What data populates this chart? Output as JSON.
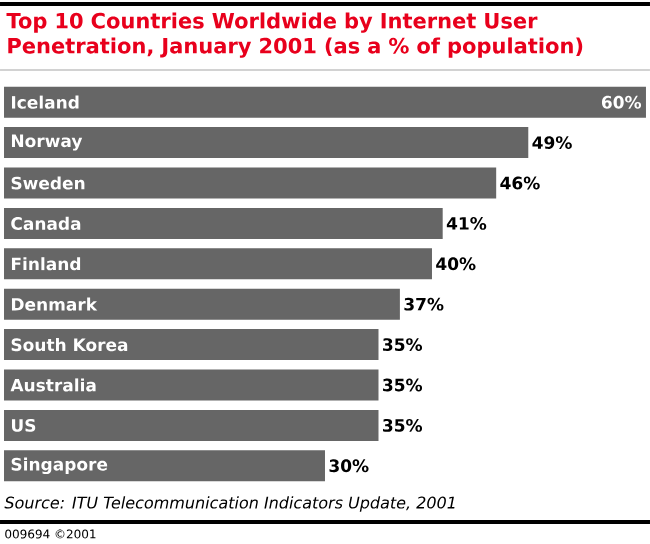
{
  "chart_data": {
    "type": "bar",
    "orientation": "horizontal",
    "title": "Top 10 Countries Worldwide by Internet User Penetration, January 2001 (as a % of population)",
    "categories": [
      "Iceland",
      "Norway",
      "Sweden",
      "Canada",
      "Finland",
      "Denmark",
      "South Korea",
      "Australia",
      "US",
      "Singapore"
    ],
    "values": [
      60,
      49,
      46,
      41,
      40,
      37,
      35,
      35,
      35,
      30
    ],
    "color": "#666666",
    "value_labels": [
      "60%",
      "49%",
      "46%",
      "41%",
      "40%",
      "37%",
      "35%",
      "35%",
      "35%",
      "30%"
    ],
    "annotations": [
      "Source: ITU Telecommunication Indicators Update, 2001",
      "009694 ©2001"
    ]
  }
}
